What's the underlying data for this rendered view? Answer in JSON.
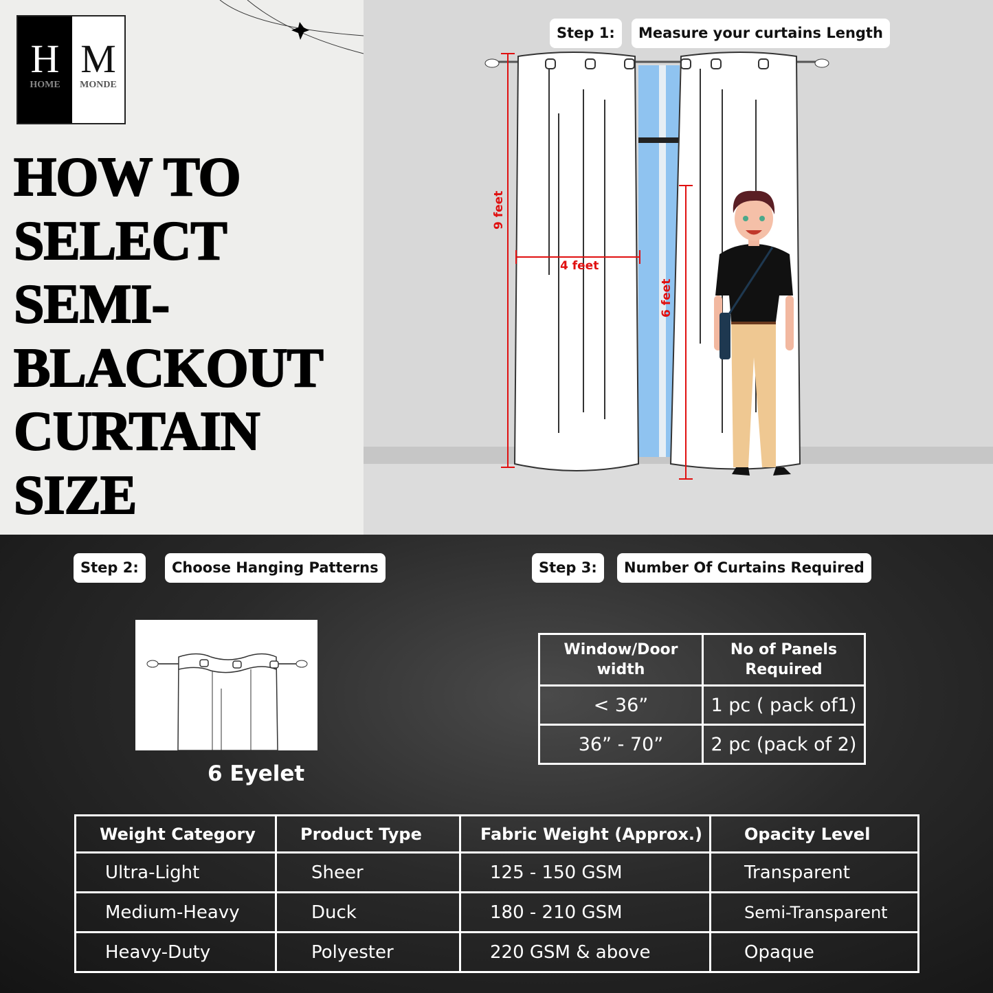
{
  "brand": {
    "logo_letters": [
      "H",
      "M"
    ],
    "logo_words": [
      "HOME",
      "MONDE"
    ]
  },
  "title_lines": [
    "HOW TO",
    "SELECT",
    "SEMI-",
    "BLACKOUT",
    "CURTAIN",
    "SIZE"
  ],
  "step1": {
    "step": "Step 1:",
    "label": "Measure your curtains Length",
    "measures": {
      "height": "9 feet",
      "width": "4 feet",
      "person": "6 feet"
    }
  },
  "step2": {
    "step": "Step 2:",
    "label": "Choose Hanging Patterns",
    "pattern": "6 Eyelet"
  },
  "step3": {
    "step": "Step 3:",
    "label": "Number Of Curtains Required",
    "headers": [
      "Window/Door width",
      "No of Panels Required"
    ],
    "rows": [
      [
        "< 36”",
        "1 pc ( pack of1)"
      ],
      [
        "36” - 70”",
        "2 pc (pack of 2)"
      ]
    ]
  },
  "weight_table": {
    "headers": [
      "Weight Category",
      "Product Type",
      "Fabric Weight (Approx.)",
      "Opacity Level"
    ],
    "rows": [
      [
        "Ultra-Light",
        "Sheer",
        "125 - 150 GSM",
        "Transparent"
      ],
      [
        "Medium-Heavy",
        "Duck",
        "180 - 210 GSM",
        "Semi-Transparent"
      ],
      [
        "Heavy-Duty",
        "Polyester",
        "220  GSM & above",
        "Opaque"
      ]
    ]
  },
  "colors": {
    "measure_red": "#e01010",
    "window_blue": "#8fc3f0",
    "dark_bg": "#1e1e1e"
  }
}
